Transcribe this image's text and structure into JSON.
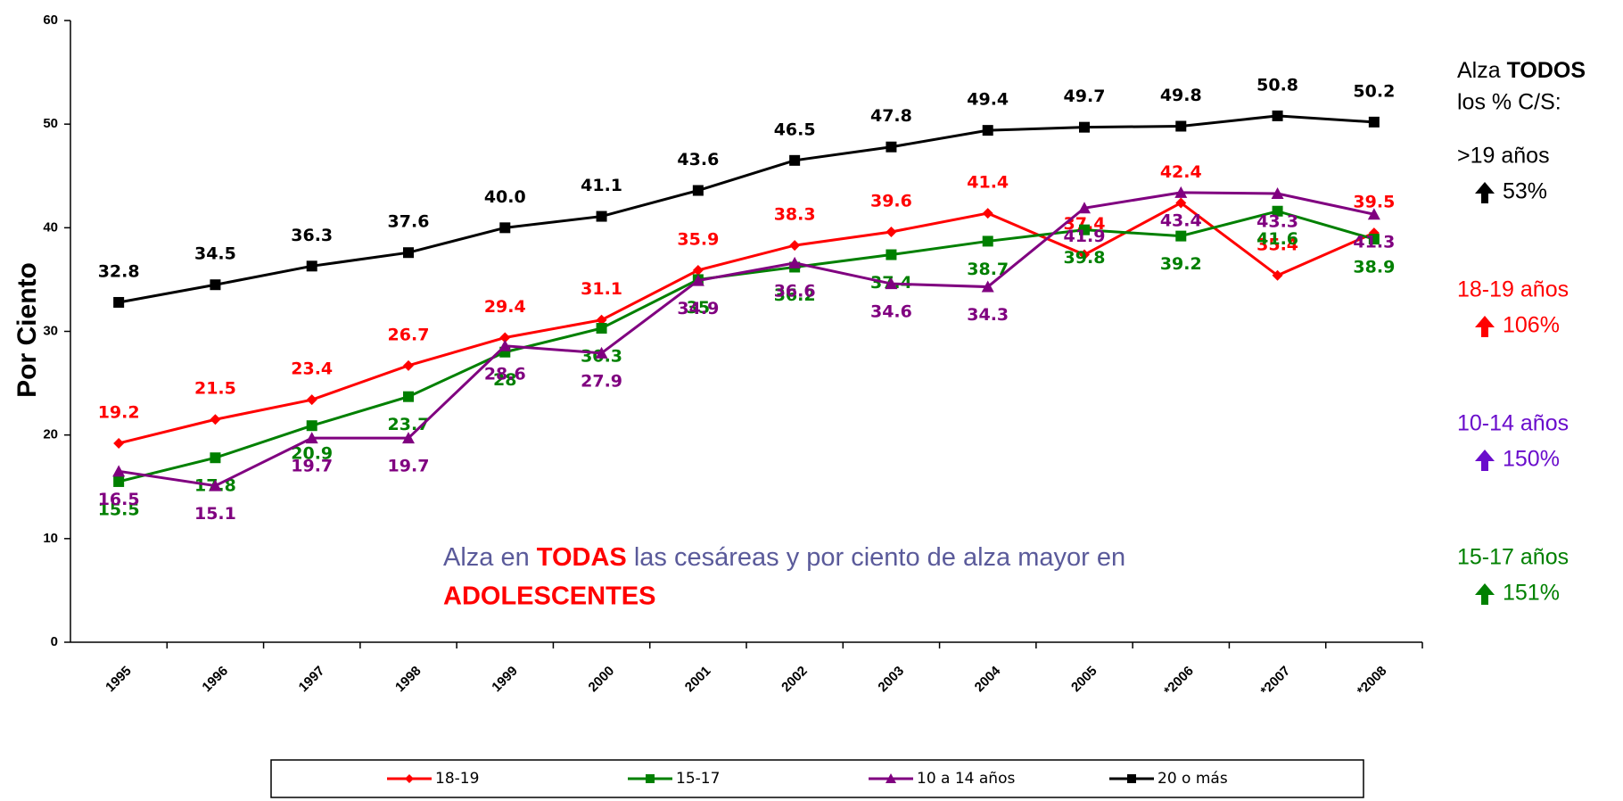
{
  "chart_data": {
    "type": "line",
    "ylabel": "Por Ciento",
    "categories": [
      "1995",
      "1996",
      "1997",
      "1998",
      "1999",
      "2000",
      "2001",
      "2002",
      "2003",
      "2004",
      "2005",
      "*2006",
      "*2007",
      "*2008"
    ],
    "ylim": [
      0,
      60
    ],
    "yticks": [
      0,
      10,
      20,
      30,
      40,
      50,
      60
    ],
    "series": [
      {
        "name": "18-19",
        "color": "#ff0000",
        "marker": "diamond",
        "label_side": "above",
        "values": [
          19.2,
          21.5,
          23.4,
          26.7,
          29.4,
          31.1,
          35.9,
          38.3,
          39.6,
          41.4,
          37.4,
          42.4,
          35.4,
          39.5
        ]
      },
      {
        "name": "15-17",
        "color": "#008000",
        "marker": "square",
        "label_side": "below",
        "values": [
          15.5,
          17.8,
          20.9,
          23.7,
          28,
          30.3,
          35,
          36.2,
          37.4,
          38.7,
          39.8,
          39.2,
          41.6,
          38.9
        ]
      },
      {
        "name": "10 a 14 años",
        "color": "#800080",
        "marker": "triangle",
        "label_side": "below",
        "values": [
          16.5,
          15.1,
          19.7,
          19.7,
          28.6,
          27.9,
          34.9,
          36.6,
          34.6,
          34.3,
          41.9,
          43.4,
          43.3,
          41.3
        ]
      },
      {
        "name": "20 o más",
        "color": "#000000",
        "marker": "square",
        "label_side": "above",
        "values": [
          32.8,
          34.5,
          36.3,
          37.6,
          40,
          41.1,
          43.6,
          46.5,
          47.8,
          49.4,
          49.7,
          49.8,
          50.8,
          50.2
        ],
        "value_labels": [
          "32.8",
          "34.5",
          "36.3",
          "37.6",
          "40.0",
          "41.1",
          "43.6",
          "46.5",
          "47.8",
          "49.4",
          "49.7",
          "49.8",
          "50.8",
          "50.2"
        ]
      }
    ],
    "annotation": {
      "parts": [
        "Alza en ",
        "TODAS",
        " las cesáreas y por ciento de alza mayor en",
        "ADOLESCENTES"
      ]
    },
    "side_notes": {
      "heading": [
        "Alza ",
        "TODOS",
        "los % C/S:"
      ],
      "items": [
        {
          "label": ">19 años",
          "change": "53%",
          "color": "#000000"
        },
        {
          "label": "18-19 años",
          "change": "106%",
          "color": "#ff0000"
        },
        {
          "label": "10-14 años",
          "change": "150%",
          "color": "#6a0dcc"
        },
        {
          "label": "15-17 años",
          "change": "151%",
          "color": "#008000"
        }
      ]
    },
    "legend": "bottom"
  }
}
